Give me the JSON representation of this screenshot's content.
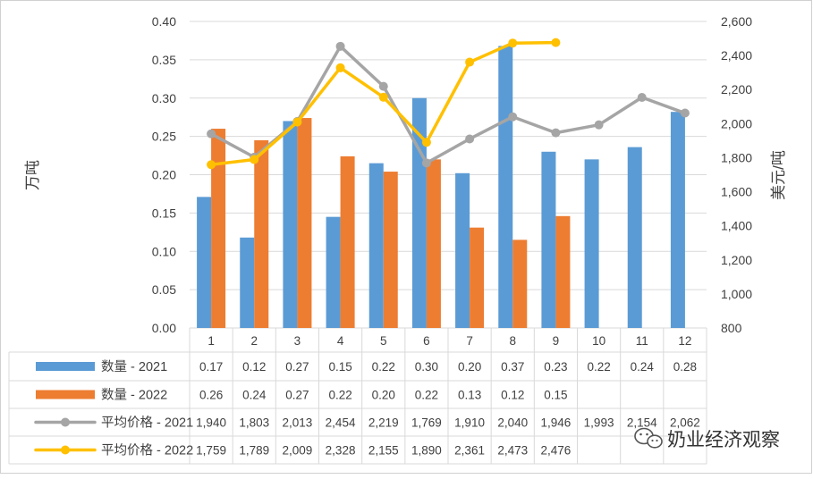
{
  "chart_data": {
    "type": "bar+line",
    "categories": [
      "1",
      "2",
      "3",
      "4",
      "5",
      "6",
      "7",
      "8",
      "9",
      "10",
      "11",
      "12"
    ],
    "left_axis": {
      "label": "万吨",
      "ticks": [
        "0.00",
        "0.05",
        "0.10",
        "0.15",
        "0.20",
        "0.25",
        "0.30",
        "0.35",
        "0.40"
      ],
      "ylim": [
        0,
        0.4
      ]
    },
    "right_axis": {
      "label": "美元/吨",
      "ticks": [
        "800",
        "1,000",
        "1,200",
        "1,400",
        "1,600",
        "1,800",
        "2,000",
        "2,200",
        "2,400",
        "2,600"
      ],
      "ylim": [
        800,
        2600
      ]
    },
    "series": [
      {
        "name": "数量 - 2021",
        "type": "bar",
        "axis": "left",
        "color": "#5b9bd5",
        "values": [
          0.171,
          0.118,
          0.27,
          0.145,
          0.215,
          0.3,
          0.202,
          0.368,
          0.23,
          0.22,
          0.236,
          0.282
        ],
        "labels": [
          "0.17",
          "0.12",
          "0.27",
          "0.15",
          "0.22",
          "0.30",
          "0.20",
          "0.37",
          "0.23",
          "0.22",
          "0.24",
          "0.28"
        ]
      },
      {
        "name": "数量 - 2022",
        "type": "bar",
        "axis": "left",
        "color": "#ed7d31",
        "values": [
          0.26,
          0.245,
          0.274,
          0.224,
          0.204,
          0.22,
          0.131,
          0.115,
          0.146,
          null,
          null,
          null
        ],
        "labels": [
          "0.26",
          "0.24",
          "0.27",
          "0.22",
          "0.20",
          "0.22",
          "0.13",
          "0.12",
          "0.15",
          "",
          "",
          ""
        ]
      },
      {
        "name": "平均价格 - 2021",
        "type": "line",
        "axis": "right",
        "color": "#a5a5a5",
        "values": [
          1940,
          1803,
          2013,
          2454,
          2219,
          1769,
          1910,
          2040,
          1946,
          1993,
          2154,
          2062
        ],
        "labels": [
          "1,940",
          "1,803",
          "2,013",
          "2,454",
          "2,219",
          "1,769",
          "1,910",
          "2,040",
          "1,946",
          "1,993",
          "2,154",
          "2,062"
        ]
      },
      {
        "name": "平均价格 - 2022",
        "type": "line",
        "axis": "right",
        "color": "#ffc000",
        "values": [
          1759,
          1789,
          2009,
          2328,
          2155,
          1890,
          2361,
          2473,
          2476,
          null,
          null,
          null
        ],
        "labels": [
          "1,759",
          "1,789",
          "2,009",
          "2,328",
          "2,155",
          "1,890",
          "2,361",
          "2,473",
          "2,476",
          "",
          "",
          ""
        ]
      }
    ],
    "data_table": true,
    "legend": "in data table (left column)"
  },
  "watermark": {
    "text": "奶业经济观察",
    "icon": "wechat-logo-icon"
  }
}
